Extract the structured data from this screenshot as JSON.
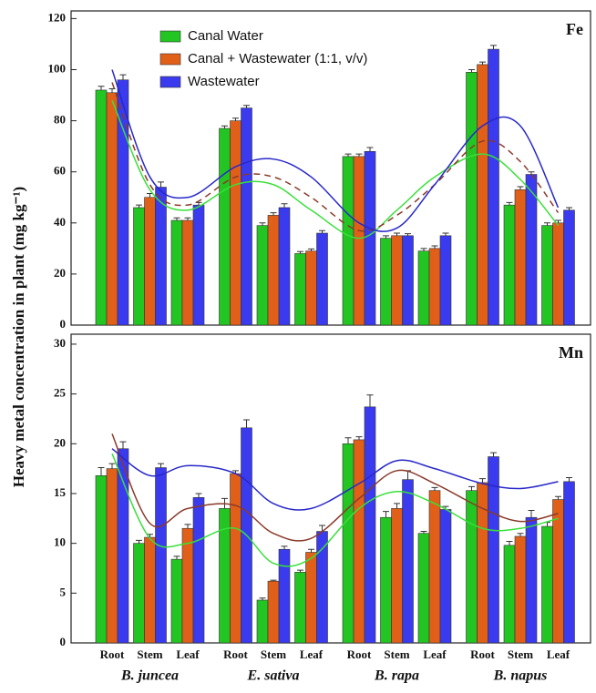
{
  "ylabel": "Heavy metal concentration in plant (mg kg⁻¹)",
  "chart_data": [
    {
      "type": "bar",
      "title": "Fe",
      "ylim": [
        0,
        123
      ],
      "yticks": [
        0,
        20,
        40,
        60,
        80,
        100,
        120
      ],
      "series": [
        {
          "name": "Canal Water",
          "color": "#22c522",
          "trend_color": "#39e039",
          "trend_style": "solid",
          "values": [
            92,
            46,
            41,
            77,
            39,
            28,
            66,
            34,
            29,
            99,
            47,
            39
          ],
          "errors": [
            1.5,
            1,
            1,
            1,
            1,
            0.8,
            1,
            1,
            1,
            1,
            1,
            1
          ],
          "trend_values": [
            88,
            53,
            45,
            55,
            55,
            45,
            34,
            45,
            58,
            67,
            57,
            39
          ]
        },
        {
          "name": "Canal + Wastewater (1:1, v/v)",
          "color": "#e0601a",
          "trend_color": "#8a3a2a",
          "trend_style": "dashed",
          "values": [
            91,
            50,
            41,
            80,
            43,
            29,
            66,
            35,
            30,
            102,
            53,
            40
          ],
          "errors": [
            1.5,
            1.5,
            1,
            1,
            1,
            0.8,
            1,
            1,
            1,
            1,
            1.2,
            1
          ],
          "trend_values": [
            95,
            55,
            47,
            58,
            58,
            50,
            37,
            43,
            55,
            72,
            64,
            44
          ]
        },
        {
          "name": "Wastewater",
          "color": "#3a3aee",
          "trend_color": "#2828c8",
          "trend_style": "solid",
          "values": [
            96,
            54,
            47,
            85,
            46,
            36,
            68,
            35,
            35,
            108,
            59,
            45
          ],
          "errors": [
            2,
            2,
            1,
            1,
            1.5,
            1,
            1.5,
            0.8,
            1,
            1.5,
            1,
            1
          ],
          "trend_values": [
            100,
            58,
            50,
            62,
            65,
            58,
            40,
            38,
            55,
            78,
            78,
            46
          ]
        }
      ]
    },
    {
      "type": "bar",
      "title": "Mn",
      "ylim": [
        0,
        31
      ],
      "yticks": [
        0,
        5,
        10,
        15,
        20,
        25,
        30
      ],
      "categories": [
        "Root",
        "Stem",
        "Leaf",
        "Root",
        "Stem",
        "Leaf",
        "Root",
        "Stem",
        "Leaf",
        "Root",
        "Stem",
        "Leaf"
      ],
      "groups": [
        "B. juncea",
        "E. sativa",
        "B. rapa",
        "B. napus"
      ],
      "series": [
        {
          "color": "#22c522",
          "trend_color": "#39e039",
          "trend_style": "solid",
          "values": [
            16.8,
            10,
            8.4,
            13.5,
            4.3,
            7.1,
            20,
            12.6,
            11,
            15.3,
            9.8,
            11.7
          ],
          "errors": [
            0.8,
            0.3,
            0.3,
            1,
            0.2,
            0.2,
            0.6,
            0.6,
            0.2,
            0.4,
            0.4,
            0.4
          ],
          "trend_values": [
            19,
            10.5,
            10,
            11.5,
            8,
            8.5,
            13.5,
            15.2,
            14,
            11.5,
            11.5,
            12.5
          ]
        },
        {
          "color": "#e0601a",
          "trend_color": "#8a3a2a",
          "trend_style": "solid",
          "values": [
            17.5,
            10.6,
            11.5,
            17,
            6.2,
            9.1,
            20.4,
            13.5,
            15.3,
            16.1,
            10.7,
            14.4
          ],
          "errors": [
            0.5,
            0.3,
            0.4,
            0.3,
            0.1,
            0.3,
            0.3,
            0.5,
            0.3,
            0.4,
            0.3,
            0.3
          ],
          "trend_values": [
            21,
            12,
            13.5,
            13.8,
            11,
            10.5,
            14.5,
            17.3,
            16,
            13.5,
            12.2,
            13
          ]
        },
        {
          "color": "#3a3aee",
          "trend_color": "#2828c8",
          "trend_style": "solid",
          "values": [
            19.5,
            17.6,
            14.6,
            21.6,
            9.4,
            11.2,
            23.7,
            16.4,
            13.4,
            18.7,
            12.6,
            16.2
          ],
          "errors": [
            0.7,
            0.4,
            0.4,
            0.8,
            0.3,
            0.6,
            1.2,
            0.9,
            0.3,
            0.4,
            0.7,
            0.4
          ],
          "trend_values": [
            19.5,
            16.8,
            17.8,
            17,
            14,
            13.5,
            16,
            18.3,
            17.5,
            16,
            15.5,
            16.2
          ]
        }
      ]
    }
  ]
}
